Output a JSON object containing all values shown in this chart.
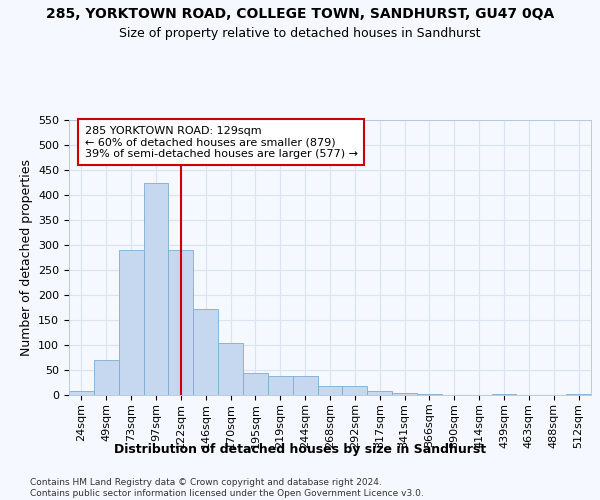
{
  "title": "285, YORKTOWN ROAD, COLLEGE TOWN, SANDHURST, GU47 0QA",
  "subtitle": "Size of property relative to detached houses in Sandhurst",
  "xlabel": "Distribution of detached houses by size in Sandhurst",
  "ylabel": "Number of detached properties",
  "bar_color": "#c5d8f0",
  "bar_edge_color": "#7badd4",
  "background_color": "#f5f8ff",
  "grid_color": "#d8e4f0",
  "bins": [
    "24sqm",
    "49sqm",
    "73sqm",
    "97sqm",
    "122sqm",
    "146sqm",
    "170sqm",
    "195sqm",
    "219sqm",
    "244sqm",
    "268sqm",
    "292sqm",
    "317sqm",
    "341sqm",
    "366sqm",
    "390sqm",
    "414sqm",
    "439sqm",
    "463sqm",
    "488sqm",
    "512sqm"
  ],
  "values": [
    8,
    70,
    291,
    425,
    291,
    173,
    105,
    45,
    38,
    38,
    18,
    18,
    8,
    5,
    3,
    0,
    0,
    3,
    0,
    0,
    3
  ],
  "vline_color": "#cc0000",
  "vline_x": 4.0,
  "ylim": [
    0,
    550
  ],
  "yticks": [
    0,
    50,
    100,
    150,
    200,
    250,
    300,
    350,
    400,
    450,
    500,
    550
  ],
  "annotation_line1": "285 YORKTOWN ROAD: 129sqm",
  "annotation_line2": "← 60% of detached houses are smaller (879)",
  "annotation_line3": "39% of semi-detached houses are larger (577) →",
  "annotation_box_color": "#ffffff",
  "annotation_box_edge": "#cc0000",
  "footer": "Contains HM Land Registry data © Crown copyright and database right 2024.\nContains public sector information licensed under the Open Government Licence v3.0.",
  "title_fontsize": 10,
  "subtitle_fontsize": 9,
  "axis_label_fontsize": 9,
  "tick_fontsize": 8,
  "ann_fontsize": 8,
  "footer_fontsize": 6.5
}
